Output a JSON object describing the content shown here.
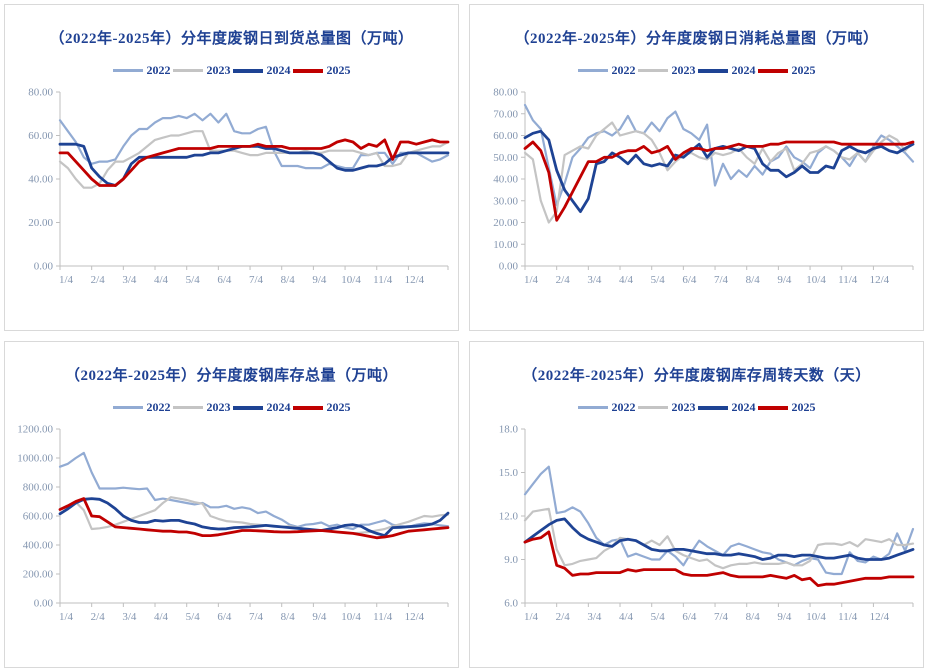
{
  "page": {
    "background": "#ffffff",
    "panel_border": "#d9d9d9",
    "title_color": "#1f4193",
    "axis_text_color": "#8496b0",
    "axis_line_color": "#bfbfbf"
  },
  "chart_data": [
    {
      "type": "line",
      "title": "（2022年-2025年）分年度废钢日到货总量图（万吨）",
      "ylim": [
        0,
        80
      ],
      "y_step": 20,
      "y_decimals": 2,
      "grid": false,
      "legend_position": "top",
      "x_tick_labels": [
        "1/4",
        "2/4",
        "3/4",
        "4/4",
        "5/4",
        "6/4",
        "7/4",
        "8/4",
        "9/4",
        "10/4",
        "11/4",
        "12/4"
      ],
      "series": [
        {
          "name": "2022",
          "color": "#92abd3",
          "width": 2.2,
          "values": [
            67,
            62,
            57,
            50,
            47,
            48,
            48,
            49,
            55,
            60,
            63,
            63,
            66,
            68,
            68,
            69,
            68,
            70,
            67,
            70,
            66,
            70,
            62,
            61,
            61,
            63,
            64,
            53,
            46,
            46,
            46,
            45,
            45,
            45,
            47,
            46,
            45,
            45,
            51,
            51,
            52,
            52,
            47,
            52,
            52,
            52,
            50,
            48,
            49,
            51
          ]
        },
        {
          "name": "2023",
          "color": "#c4c4c4",
          "width": 2.2,
          "values": [
            48,
            45,
            40,
            36,
            36,
            38,
            44,
            48,
            48,
            50,
            52,
            55,
            58,
            59,
            60,
            60,
            61,
            62,
            62,
            53,
            53,
            53,
            53,
            52,
            51,
            51,
            52,
            52,
            52,
            52,
            52,
            53,
            52,
            52,
            53,
            53,
            53,
            53,
            52,
            51,
            52,
            46,
            46,
            47,
            52,
            53,
            54,
            55,
            55,
            57
          ]
        },
        {
          "name": "2024",
          "color": "#1e4394",
          "width": 2.8,
          "values": [
            56,
            56,
            56,
            55,
            45,
            41,
            38,
            37,
            40,
            47,
            50,
            50,
            50,
            50,
            50,
            50,
            50,
            51,
            51,
            52,
            52,
            53,
            54,
            55,
            55,
            55,
            54,
            54,
            53,
            52,
            52,
            52,
            52,
            51,
            48,
            45,
            44,
            44,
            45,
            46,
            46,
            47,
            50,
            51,
            52,
            52,
            52,
            52,
            52,
            52
          ]
        },
        {
          "name": "2025",
          "color": "#c00000",
          "width": 2.8,
          "values": [
            52,
            52,
            48,
            44,
            40,
            37,
            37,
            37,
            40,
            44,
            48,
            50,
            51,
            52,
            53,
            54,
            54,
            54,
            54,
            54,
            55,
            55,
            55,
            55,
            55,
            56,
            55,
            55,
            55,
            54,
            54,
            54,
            54,
            54,
            55,
            57,
            58,
            57,
            54,
            56,
            55,
            58,
            49,
            57,
            57,
            56,
            57,
            58,
            57,
            57
          ]
        }
      ]
    },
    {
      "type": "line",
      "title": "（2022年-2025年）分年度废钢日消耗总量图（万吨）",
      "ylim": [
        0,
        80
      ],
      "y_step": 10,
      "y_decimals": 2,
      "grid": false,
      "legend_position": "top",
      "x_tick_labels": [
        "1/4",
        "2/4",
        "3/4",
        "4/4",
        "5/4",
        "6/4",
        "7/4",
        "8/4",
        "9/4",
        "10/4",
        "11/4",
        "12/4"
      ],
      "series": [
        {
          "name": "2022",
          "color": "#92abd3",
          "width": 2.2,
          "values": [
            74,
            67,
            63,
            45,
            28,
            38,
            50,
            54,
            59,
            61,
            62,
            60,
            63,
            69,
            62,
            61,
            66,
            62,
            68,
            71,
            63,
            61,
            58,
            65,
            37,
            47,
            40,
            44,
            41,
            46,
            42,
            48,
            50,
            55,
            50,
            48,
            45,
            52,
            55,
            53,
            50,
            46,
            52,
            48,
            55,
            60,
            58,
            55,
            52,
            48
          ]
        },
        {
          "name": "2023",
          "color": "#c4c4c4",
          "width": 2.2,
          "values": [
            52,
            49,
            30,
            20,
            25,
            51,
            53,
            55,
            54,
            60,
            63,
            66,
            60,
            61,
            62,
            61,
            58,
            52,
            44,
            48,
            51,
            52,
            50,
            49,
            52,
            51,
            52,
            54,
            50,
            47,
            54,
            48,
            52,
            54,
            44,
            47,
            52,
            53,
            55,
            53,
            50,
            49,
            52,
            48,
            53,
            57,
            60,
            58,
            53,
            57
          ]
        },
        {
          "name": "2024",
          "color": "#1e4394",
          "width": 2.8,
          "values": [
            59,
            61,
            62,
            58,
            44,
            35,
            30,
            25,
            31,
            47,
            48,
            52,
            50,
            47,
            51,
            47,
            46,
            47,
            46,
            51,
            50,
            53,
            56,
            50,
            54,
            55,
            54,
            53,
            55,
            54,
            47,
            44,
            44,
            41,
            43,
            46,
            43,
            43,
            46,
            45,
            53,
            55,
            53,
            52,
            54,
            55,
            53,
            52,
            54,
            56
          ]
        },
        {
          "name": "2025",
          "color": "#c00000",
          "width": 2.8,
          "values": [
            54,
            57,
            53,
            43,
            21,
            27,
            34,
            41,
            48,
            48,
            50,
            50,
            52,
            53,
            53,
            55,
            52,
            53,
            55,
            49,
            52,
            54,
            54,
            53,
            54,
            54,
            55,
            56,
            55,
            55,
            55,
            56,
            56,
            57,
            57,
            57,
            57,
            57,
            57,
            57,
            56,
            56,
            56,
            56,
            56,
            56,
            56,
            56,
            56,
            57
          ]
        }
      ]
    },
    {
      "type": "line",
      "title": "（2022年-2025年）分年度废钢库存总量（万吨）",
      "ylim": [
        0,
        1200
      ],
      "y_step": 200,
      "y_decimals": 2,
      "grid": false,
      "legend_position": "top",
      "x_tick_labels": [
        "1/4",
        "2/4",
        "3/4",
        "4/4",
        "5/4",
        "6/4",
        "7/4",
        "8/4",
        "9/4",
        "10/4",
        "11/4",
        "12/4"
      ],
      "series": [
        {
          "name": "2022",
          "color": "#92abd3",
          "width": 2.2,
          "values": [
            940,
            960,
            1000,
            1035,
            900,
            790,
            790,
            790,
            795,
            790,
            785,
            790,
            710,
            720,
            710,
            700,
            690,
            680,
            690,
            660,
            660,
            670,
            650,
            660,
            650,
            620,
            630,
            600,
            575,
            540,
            525,
            540,
            545,
            555,
            530,
            540,
            520,
            510,
            540,
            540,
            555,
            570,
            540,
            530,
            525,
            540,
            550,
            545,
            535,
            530
          ]
        },
        {
          "name": "2023",
          "color": "#c4c4c4",
          "width": 2.2,
          "values": [
            645,
            665,
            695,
            640,
            510,
            515,
            525,
            540,
            560,
            580,
            600,
            620,
            640,
            690,
            730,
            720,
            710,
            695,
            685,
            600,
            580,
            565,
            560,
            555,
            545,
            540,
            535,
            530,
            525,
            530,
            520,
            510,
            505,
            500,
            495,
            490,
            485,
            480,
            485,
            490,
            500,
            510,
            530,
            545,
            560,
            580,
            600,
            595,
            605,
            610
          ]
        },
        {
          "name": "2024",
          "color": "#1e4394",
          "width": 2.8,
          "values": [
            615,
            650,
            690,
            715,
            720,
            715,
            690,
            650,
            600,
            570,
            555,
            555,
            570,
            565,
            570,
            570,
            555,
            545,
            525,
            515,
            510,
            512,
            520,
            522,
            525,
            530,
            535,
            530,
            525,
            520,
            515,
            510,
            505,
            500,
            510,
            520,
            535,
            540,
            530,
            500,
            480,
            465,
            520,
            522,
            526,
            530,
            535,
            545,
            570,
            620
          ]
        },
        {
          "name": "2025",
          "color": "#c00000",
          "width": 2.8,
          "values": [
            645,
            670,
            700,
            720,
            600,
            595,
            560,
            525,
            520,
            515,
            510,
            505,
            500,
            495,
            495,
            490,
            490,
            480,
            465,
            465,
            470,
            480,
            490,
            500,
            500,
            498,
            495,
            492,
            490,
            490,
            492,
            495,
            498,
            500,
            495,
            490,
            485,
            480,
            470,
            460,
            450,
            455,
            465,
            480,
            495,
            500,
            505,
            510,
            515,
            520
          ]
        }
      ]
    },
    {
      "type": "line",
      "title": "（2022年-2025年）分年度废钢库存周转天数（天）",
      "ylim": [
        6,
        18
      ],
      "y_step": 3,
      "y_decimals": 1,
      "grid": false,
      "legend_position": "top",
      "x_tick_labels": [
        "1/4",
        "2/4",
        "3/4",
        "4/4",
        "5/4",
        "6/4",
        "7/4",
        "8/4",
        "9/4",
        "10/4",
        "11/4",
        "12/4"
      ],
      "series": [
        {
          "name": "2022",
          "color": "#92abd3",
          "width": 2.2,
          "values": [
            13.5,
            14.2,
            14.9,
            15.4,
            12.2,
            12.3,
            12.6,
            12.3,
            11.5,
            10.5,
            10.0,
            10.3,
            10.4,
            9.2,
            9.4,
            9.2,
            9.0,
            9.0,
            9.6,
            9.2,
            8.6,
            9.5,
            10.3,
            9.9,
            9.6,
            9.3,
            9.9,
            10.1,
            9.9,
            9.7,
            9.5,
            9.4,
            9.0,
            8.8,
            8.6,
            8.9,
            9.1,
            9.0,
            8.1,
            8.0,
            8.0,
            9.5,
            8.9,
            8.8,
            9.2,
            9.0,
            9.4,
            10.8,
            9.6,
            11.1
          ]
        },
        {
          "name": "2023",
          "color": "#c4c4c4",
          "width": 2.2,
          "values": [
            11.7,
            12.3,
            12.4,
            12.5,
            9.7,
            8.6,
            8.7,
            8.9,
            9.0,
            9.1,
            9.6,
            9.9,
            10.5,
            10.4,
            10.3,
            10.0,
            10.3,
            10.0,
            10.6,
            9.6,
            9.3,
            9.1,
            8.9,
            9.0,
            8.6,
            8.4,
            8.6,
            8.7,
            8.7,
            8.8,
            8.7,
            8.7,
            8.7,
            8.8,
            8.6,
            8.6,
            8.9,
            10.0,
            10.1,
            10.1,
            10.0,
            10.2,
            9.9,
            10.4,
            10.3,
            10.2,
            10.4,
            10.0,
            10.0,
            10.1
          ]
        },
        {
          "name": "2024",
          "color": "#1e4394",
          "width": 2.8,
          "values": [
            10.2,
            10.6,
            11.0,
            11.4,
            11.7,
            11.8,
            11.2,
            10.7,
            10.4,
            10.2,
            10.0,
            9.9,
            10.3,
            10.4,
            10.3,
            10.0,
            9.7,
            9.6,
            9.6,
            9.7,
            9.7,
            9.6,
            9.5,
            9.4,
            9.4,
            9.3,
            9.3,
            9.4,
            9.3,
            9.2,
            9.0,
            9.1,
            9.3,
            9.3,
            9.2,
            9.3,
            9.3,
            9.2,
            9.1,
            9.1,
            9.2,
            9.3,
            9.1,
            9.0,
            9.0,
            9.0,
            9.1,
            9.3,
            9.5,
            9.7
          ]
        },
        {
          "name": "2025",
          "color": "#c00000",
          "width": 2.8,
          "values": [
            10.2,
            10.4,
            10.5,
            10.9,
            8.6,
            8.4,
            7.9,
            8.0,
            8.0,
            8.1,
            8.1,
            8.1,
            8.1,
            8.3,
            8.2,
            8.3,
            8.3,
            8.3,
            8.3,
            8.3,
            8.0,
            7.9,
            7.9,
            7.9,
            8.0,
            8.1,
            7.9,
            7.8,
            7.8,
            7.8,
            7.8,
            7.9,
            7.8,
            7.7,
            7.9,
            7.6,
            7.7,
            7.2,
            7.3,
            7.3,
            7.4,
            7.5,
            7.6,
            7.7,
            7.7,
            7.7,
            7.8,
            7.8,
            7.8,
            7.8
          ]
        }
      ]
    }
  ]
}
